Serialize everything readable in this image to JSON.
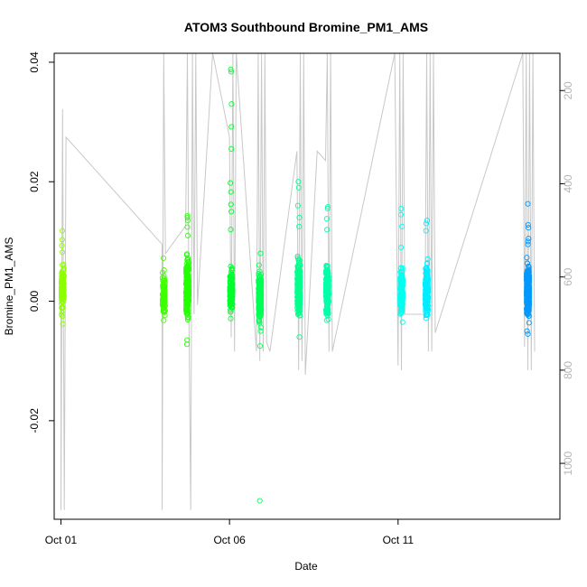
{
  "chart_data": {
    "type": "scatter",
    "title": "ATOM3 Southbound Bromine_PM1_AMS",
    "xlabel": "Date",
    "ylabel": "Bromine_PM1_AMS",
    "x_ticks": [
      "Oct 01",
      "Oct 06",
      "Oct 11"
    ],
    "x_tick_days": [
      1,
      6,
      11
    ],
    "xlim": [
      0.8,
      15.8
    ],
    "ylim": [
      -0.0365,
      0.0415
    ],
    "y_ticks": [
      -0.02,
      0.0,
      0.02,
      0.04
    ],
    "y_tick_labels": [
      "-0.02",
      "0.00",
      "0.02",
      "0.04"
    ],
    "y2_ticks": [
      200,
      400,
      600,
      800,
      1000
    ],
    "y2_tick_labels": [
      "200",
      "400",
      "600",
      "800",
      "1000"
    ],
    "y2lim": [
      1120,
      120
    ],
    "y2_color": "#b5b5b5",
    "grid": false,
    "legend": "none",
    "colormap": "latitude rainbow (yellow-green to blue)",
    "clusters": [
      {
        "day": 1.05,
        "center": 0.002,
        "spread": 0.002,
        "color": "#8cff00",
        "n": 120,
        "outliers": [
          0.0118,
          0.0103,
          0.0093,
          0.0082,
          -0.0025,
          -0.0038
        ]
      },
      {
        "day": 4.05,
        "center": 0.001,
        "spread": 0.0018,
        "color": "#3fff00",
        "n": 90,
        "outliers": [
          0.0072,
          0.0052,
          -0.0032
        ]
      },
      {
        "day": 4.75,
        "center": 0.002,
        "spread": 0.0028,
        "color": "#22ff00",
        "n": 230,
        "outliers": [
          0.0143,
          0.014,
          0.0135,
          0.0124,
          0.011,
          -0.0065,
          -0.0072
        ]
      },
      {
        "day": 6.05,
        "center": 0.0015,
        "spread": 0.0022,
        "color": "#00ff2b",
        "n": 160,
        "outliers": [
          0.0388,
          0.0384,
          0.033,
          0.0292,
          0.0255,
          0.0198,
          0.0183,
          0.0162,
          0.015,
          0.012
        ]
      },
      {
        "day": 6.9,
        "center": 0.0008,
        "spread": 0.0025,
        "color": "#00ff55",
        "n": 220,
        "outliers": [
          0.008,
          -0.005,
          -0.0075,
          -0.0334
        ]
      },
      {
        "day": 8.05,
        "center": 0.002,
        "spread": 0.0028,
        "color": "#00ff8c",
        "n": 240,
        "outliers": [
          0.02,
          0.019,
          0.016,
          0.014,
          0.0125,
          -0.006
        ]
      },
      {
        "day": 8.9,
        "center": 0.0018,
        "spread": 0.0026,
        "color": "#00ffaa",
        "n": 240,
        "outliers": [
          0.0158,
          0.0155,
          0.0138,
          0.012
        ]
      },
      {
        "day": 11.1,
        "center": 0.0015,
        "spread": 0.0024,
        "color": "#00ffee",
        "n": 200,
        "outliers": [
          0.0155,
          0.0145,
          0.0125,
          0.009
        ]
      },
      {
        "day": 11.85,
        "center": 0.0018,
        "spread": 0.0026,
        "color": "#00ecff",
        "n": 240,
        "outliers": [
          0.0135,
          0.013,
          0.0118
        ]
      },
      {
        "day": 14.85,
        "center": 0.0018,
        "spread": 0.0026,
        "color": "#0099ff",
        "n": 280,
        "outliers": [
          0.0163,
          0.0128,
          0.0123,
          0.0105,
          0.01,
          0.0095,
          -0.005,
          -0.0055
        ]
      }
    ],
    "altitude_track": [
      [
        1.0,
        590
      ],
      [
        1.0,
        1100
      ],
      [
        1.05,
        240
      ],
      [
        1.1,
        1100
      ],
      [
        1.15,
        300
      ],
      [
        4.0,
        530
      ],
      [
        4.0,
        1100
      ],
      [
        4.05,
        120
      ],
      [
        4.1,
        550
      ],
      [
        4.7,
        490
      ],
      [
        4.75,
        120
      ],
      [
        4.8,
        700
      ],
      [
        4.85,
        1100
      ],
      [
        4.9,
        120
      ],
      [
        4.95,
        680
      ],
      [
        5.0,
        120
      ],
      [
        5.05,
        660
      ],
      [
        5.5,
        120
      ],
      [
        6.0,
        300
      ],
      [
        6.05,
        730
      ],
      [
        6.1,
        120
      ],
      [
        6.15,
        760
      ],
      [
        6.2,
        120
      ],
      [
        6.8,
        760
      ],
      [
        6.85,
        120
      ],
      [
        6.9,
        780
      ],
      [
        6.95,
        120
      ],
      [
        7.0,
        760
      ],
      [
        7.05,
        120
      ],
      [
        7.1,
        740
      ],
      [
        7.2,
        760
      ],
      [
        8.0,
        330
      ],
      [
        8.05,
        800
      ],
      [
        8.1,
        120
      ],
      [
        8.15,
        780
      ],
      [
        8.2,
        120
      ],
      [
        8.25,
        810
      ],
      [
        8.6,
        330
      ],
      [
        8.85,
        350
      ],
      [
        8.9,
        120
      ],
      [
        8.95,
        760
      ],
      [
        9.0,
        120
      ],
      [
        9.05,
        760
      ],
      [
        10.9,
        120
      ],
      [
        11.0,
        790
      ],
      [
        11.05,
        120
      ],
      [
        11.1,
        800
      ],
      [
        11.15,
        120
      ],
      [
        11.2,
        680
      ],
      [
        11.8,
        680
      ],
      [
        11.85,
        120
      ],
      [
        11.9,
        760
      ],
      [
        11.95,
        120
      ],
      [
        12.0,
        760
      ],
      [
        12.05,
        120
      ],
      [
        12.1,
        720
      ],
      [
        14.7,
        120
      ],
      [
        14.75,
        750
      ],
      [
        14.8,
        120
      ],
      [
        14.85,
        800
      ],
      [
        14.9,
        120
      ],
      [
        14.95,
        800
      ],
      [
        15.0,
        120
      ],
      [
        15.05,
        760
      ]
    ]
  }
}
